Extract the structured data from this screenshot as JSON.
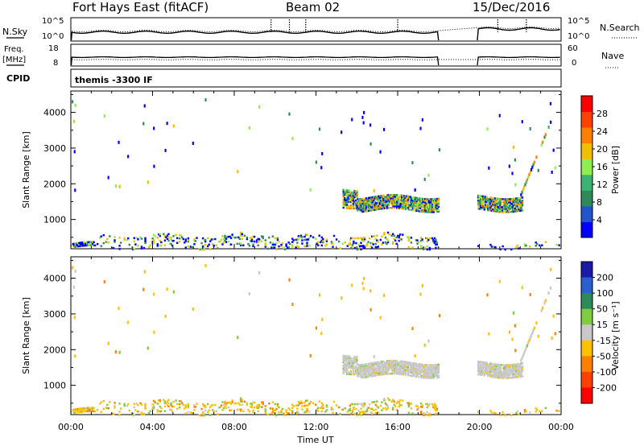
{
  "header": {
    "station": "Fort Hays East (fitACF)",
    "beam": "Beam 02",
    "date": "15/Dec/2016"
  },
  "nsky_panel": {
    "left_label": "N.Sky",
    "left_ticks": [
      "10^5",
      "10^0"
    ],
    "right_label": "N.Search",
    "right_ticks": [
      "10^5",
      "10^0"
    ]
  },
  "freq_panel": {
    "left_label_line1": "Freq.",
    "left_label_line2": "[MHz]",
    "left_ticks": [
      "18",
      "8"
    ],
    "right_label": "Nave",
    "right_ticks": [
      "60",
      "0"
    ]
  },
  "cpid_panel": {
    "label": "CPID",
    "text": "themis -3300 IF"
  },
  "chart_data": [
    {
      "type": "scatter",
      "title": "",
      "quantity": "Power",
      "ylabel": "Slant Range [km]",
      "xlabel": "",
      "xlim_hours": [
        0,
        24
      ],
      "ylim_km": [
        180,
        4600
      ],
      "ytick_labels": [
        "1000",
        "2000",
        "3000",
        "4000"
      ],
      "ytick_values": [
        1000,
        2000,
        3000,
        4000
      ],
      "colorbar": {
        "label": "Power [dB]",
        "range": [
          0,
          32
        ],
        "tick_labels": [
          "4",
          "8",
          "12",
          "16",
          "20",
          "24",
          "28"
        ],
        "tick_values": [
          4,
          8,
          12,
          16,
          20,
          24,
          28
        ],
        "colors": [
          "#0000ff",
          "#2255cc",
          "#2e8b57",
          "#3cb371",
          "#90ee50",
          "#f0c000",
          "#ff8000",
          "#ff4000",
          "#ff0000"
        ]
      },
      "data_gaps_hours": [
        [
          18.05,
          19.85
        ]
      ],
      "echo_regions": [
        {
          "t_start": 13.3,
          "t_end": 18.0,
          "range_low_km": 1250,
          "range_high_km": 1700
        },
        {
          "t_start": 19.9,
          "t_end": 22.1,
          "range_low_km": 1250,
          "range_high_km": 1650
        },
        {
          "t_start": 0.0,
          "t_end": 18.0,
          "range_low_km": 200,
          "range_high_km": 550
        }
      ]
    },
    {
      "type": "scatter",
      "title": "",
      "quantity": "Velocity",
      "ylabel": "Slant Range [km]",
      "xlabel": "Time UT",
      "xlim_hours": [
        0,
        24
      ],
      "ylim_km": [
        180,
        4600
      ],
      "ytick_labels": [
        "1000",
        "2000",
        "3000",
        "4000"
      ],
      "ytick_values": [
        1000,
        2000,
        3000,
        4000
      ],
      "xtick_labels": [
        "00:00",
        "04:00",
        "08:00",
        "12:00",
        "16:00",
        "20:00",
        "00:00"
      ],
      "xtick_values": [
        0,
        4,
        8,
        12,
        16,
        20,
        24
      ],
      "colorbar": {
        "label": "Velocity [m s⁻¹]",
        "tick_labels": [
          "200",
          "100",
          "50",
          "15",
          "-15",
          "-50",
          "-100",
          "-200"
        ],
        "tick_values": [
          200,
          100,
          50,
          15,
          -15,
          -50,
          -100,
          -200
        ],
        "colors": [
          "#1a1aa8",
          "#2a5fd0",
          "#2e8b57",
          "#7fcc40",
          "#c8c8c8",
          "#ffc000",
          "#ff8000",
          "#ff4000",
          "#ff0000"
        ]
      },
      "data_gaps_hours": [
        [
          18.05,
          19.85
        ]
      ],
      "echo_regions": [
        {
          "t_start": 13.3,
          "t_end": 18.0,
          "range_low_km": 1250,
          "range_high_km": 1700,
          "velocity": "-15 to 15"
        },
        {
          "t_start": 19.9,
          "t_end": 22.1,
          "range_low_km": 1250,
          "range_high_km": 1650,
          "velocity": "-15 to 15"
        },
        {
          "t_start": 0.0,
          "t_end": 18.0,
          "range_low_km": 200,
          "range_high_km": 550,
          "velocity": "-50 to -15"
        }
      ]
    }
  ]
}
